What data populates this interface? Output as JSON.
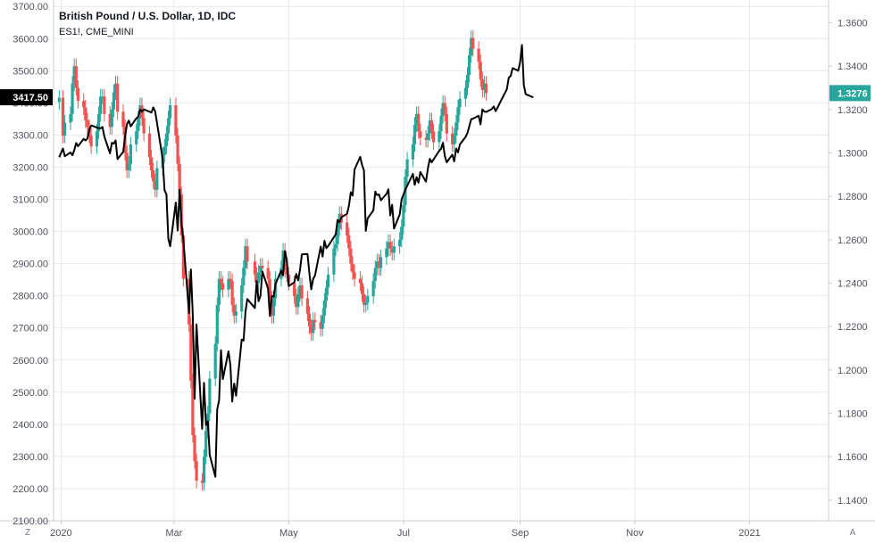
{
  "legend": {
    "main_symbol": "British Pound / U.S. Dollar, 1D, IDC",
    "compare_symbol": "ES1!, CME_MINI"
  },
  "corner_buttons": {
    "left": "Z",
    "right": "A"
  },
  "colors": {
    "up": "#26a69a",
    "down": "#ef5350",
    "compare_line": "#000000",
    "grid": "#e6e9ef",
    "axis_line": "#c8ccd6",
    "last_label_left_bg": "#000000",
    "last_label_right_bg": "#26a69a"
  },
  "chart_data": {
    "type": "candlestick+line",
    "xlabel": "",
    "ylabel": "",
    "x_labels": [
      "2020",
      "Mar",
      "May",
      "Jul",
      "Sep",
      "Nov",
      "2021"
    ],
    "x_label_dates": [
      "2020-01-01",
      "2020-03-01",
      "2020-05-01",
      "2020-07-01",
      "2020-09-01",
      "2020-11-01",
      "2021-01-01"
    ],
    "x_range": [
      "2019-12-28",
      "2021-02-12"
    ],
    "left_axis": {
      "series": "ES1!, CME_MINI",
      "ticks": [
        "3700.00",
        "3600.00",
        "3500.00",
        "3400.00",
        "3300.00",
        "3200.00",
        "3100.00",
        "3000.00",
        "2900.00",
        "2800.00",
        "2700.00",
        "2600.00",
        "2500.00",
        "2400.00",
        "2300.00",
        "2200.00",
        "2100.00"
      ],
      "range": [
        2100,
        3720
      ],
      "last_value": "3417.50"
    },
    "right_axis": {
      "series": "British Pound / U.S. Dollar, 1D, IDC",
      "ticks": [
        "1.3600",
        "1.3400",
        "1.3200",
        "1.3000",
        "1.2800",
        "1.2600",
        "1.2400",
        "1.2200",
        "1.2000",
        "1.1800",
        "1.1600",
        "1.1400"
      ],
      "range": [
        1.1305,
        1.3705
      ],
      "last_value": "1.3276"
    },
    "gbpusd_close_series": [
      [
        "2019-12-31",
        1.3255
      ],
      [
        "2020-01-02",
        1.308
      ],
      [
        "2020-01-03",
        1.314
      ],
      [
        "2020-01-06",
        1.318
      ],
      [
        "2020-01-07",
        1.332
      ],
      [
        "2020-01-08",
        1.34
      ],
      [
        "2020-01-09",
        1.33
      ],
      [
        "2020-01-10",
        1.324
      ],
      [
        "2020-01-13",
        1.321
      ],
      [
        "2020-01-14",
        1.315
      ],
      [
        "2020-01-15",
        1.312
      ],
      [
        "2020-01-16",
        1.308
      ],
      [
        "2020-01-17",
        1.303
      ],
      [
        "2020-01-20",
        1.31
      ],
      [
        "2020-01-21",
        1.318
      ],
      [
        "2020-01-22",
        1.326
      ],
      [
        "2020-01-23",
        1.326
      ],
      [
        "2020-01-24",
        1.318
      ],
      [
        "2020-01-27",
        1.312
      ],
      [
        "2020-01-28",
        1.32
      ],
      [
        "2020-01-29",
        1.328
      ],
      [
        "2020-01-30",
        1.332
      ],
      [
        "2020-01-31",
        1.319
      ],
      [
        "2020-02-03",
        1.312
      ],
      [
        "2020-02-04",
        1.3
      ],
      [
        "2020-02-05",
        1.292
      ],
      [
        "2020-02-06",
        1.295
      ],
      [
        "2020-02-07",
        1.304
      ],
      [
        "2020-02-10",
        1.31
      ],
      [
        "2020-02-11",
        1.316
      ],
      [
        "2020-02-12",
        1.322
      ],
      [
        "2020-02-13",
        1.316
      ],
      [
        "2020-02-14",
        1.309
      ],
      [
        "2020-02-17",
        1.298
      ],
      [
        "2020-02-18",
        1.292
      ],
      [
        "2020-02-19",
        1.287
      ],
      [
        "2020-02-20",
        1.283
      ],
      [
        "2020-02-21",
        1.293
      ],
      [
        "2020-02-24",
        1.299
      ],
      [
        "2020-02-25",
        1.303
      ],
      [
        "2020-02-26",
        1.309
      ],
      [
        "2020-02-27",
        1.316
      ],
      [
        "2020-02-28",
        1.322
      ],
      [
        "2020-03-02",
        1.308
      ],
      [
        "2020-03-03",
        1.295
      ],
      [
        "2020-03-04",
        1.281
      ],
      [
        "2020-03-05",
        1.262
      ],
      [
        "2020-03-06",
        1.242
      ],
      [
        "2020-03-09",
        1.221
      ],
      [
        "2020-03-10",
        1.195
      ],
      [
        "2020-03-11",
        1.17
      ],
      [
        "2020-03-12",
        1.158
      ],
      [
        "2020-03-13",
        1.149
      ],
      [
        "2020-03-16",
        1.148
      ],
      [
        "2020-03-17",
        1.16
      ],
      [
        "2020-03-18",
        1.172
      ],
      [
        "2020-03-19",
        1.18
      ],
      [
        "2020-03-20",
        1.196
      ],
      [
        "2020-03-23",
        1.212
      ],
      [
        "2020-03-24",
        1.23
      ],
      [
        "2020-03-25",
        1.242
      ],
      [
        "2020-03-26",
        1.24
      ],
      [
        "2020-03-27",
        1.237
      ],
      [
        "2020-03-30",
        1.242
      ],
      [
        "2020-03-31",
        1.241
      ],
      [
        "2020-04-01",
        1.23
      ],
      [
        "2020-04-02",
        1.225
      ],
      [
        "2020-04-03",
        1.227
      ],
      [
        "2020-04-06",
        1.239
      ],
      [
        "2020-04-07",
        1.247
      ],
      [
        "2020-04-08",
        1.257
      ],
      [
        "2020-04-09",
        1.25
      ],
      [
        "2020-04-13",
        1.244
      ],
      [
        "2020-04-14",
        1.24
      ],
      [
        "2020-04-15",
        1.245
      ],
      [
        "2020-04-16",
        1.248
      ],
      [
        "2020-04-17",
        1.247
      ],
      [
        "2020-04-20",
        1.242
      ],
      [
        "2020-04-21",
        1.233
      ],
      [
        "2020-04-22",
        1.225
      ],
      [
        "2020-04-23",
        1.233
      ],
      [
        "2020-04-24",
        1.242
      ],
      [
        "2020-04-27",
        1.247
      ],
      [
        "2020-04-28",
        1.255
      ],
      [
        "2020-04-29",
        1.246
      ],
      [
        "2020-04-30",
        1.244
      ],
      [
        "2020-05-01",
        1.24
      ],
      [
        "2020-05-04",
        1.234
      ],
      [
        "2020-05-05",
        1.229
      ],
      [
        "2020-05-06",
        1.235
      ],
      [
        "2020-05-07",
        1.239
      ],
      [
        "2020-05-08",
        1.233
      ],
      [
        "2020-05-11",
        1.226
      ],
      [
        "2020-05-12",
        1.22
      ],
      [
        "2020-05-13",
        1.217
      ],
      [
        "2020-05-14",
        1.223
      ],
      [
        "2020-05-15",
        1.222
      ],
      [
        "2020-05-18",
        1.219
      ],
      [
        "2020-05-19",
        1.225
      ],
      [
        "2020-05-20",
        1.232
      ],
      [
        "2020-05-21",
        1.238
      ],
      [
        "2020-05-22",
        1.244
      ],
      [
        "2020-05-25",
        1.256
      ],
      [
        "2020-05-26",
        1.258
      ],
      [
        "2020-05-27",
        1.265
      ],
      [
        "2020-05-28",
        1.272
      ],
      [
        "2020-05-29",
        1.268
      ],
      [
        "2020-06-01",
        1.262
      ],
      [
        "2020-06-02",
        1.256
      ],
      [
        "2020-06-03",
        1.249
      ],
      [
        "2020-06-04",
        1.245
      ],
      [
        "2020-06-05",
        1.242
      ],
      [
        "2020-06-08",
        1.24
      ],
      [
        "2020-06-09",
        1.235
      ],
      [
        "2020-06-10",
        1.23
      ],
      [
        "2020-06-11",
        1.231
      ],
      [
        "2020-06-12",
        1.234
      ],
      [
        "2020-06-15",
        1.241
      ],
      [
        "2020-06-16",
        1.247
      ],
      [
        "2020-06-17",
        1.25
      ],
      [
        "2020-06-18",
        1.247
      ],
      [
        "2020-06-19",
        1.252
      ],
      [
        "2020-06-22",
        1.256
      ],
      [
        "2020-06-23",
        1.259
      ],
      [
        "2020-06-24",
        1.256
      ],
      [
        "2020-06-25",
        1.254
      ],
      [
        "2020-06-26",
        1.257
      ],
      [
        "2020-06-29",
        1.26
      ],
      [
        "2020-06-30",
        1.266
      ],
      [
        "2020-07-01",
        1.276
      ],
      [
        "2020-07-02",
        1.289
      ],
      [
        "2020-07-03",
        1.297
      ],
      [
        "2020-07-06",
        1.304
      ],
      [
        "2020-07-07",
        1.313
      ],
      [
        "2020-07-08",
        1.318
      ],
      [
        "2020-07-09",
        1.31
      ],
      [
        "2020-07-10",
        1.307
      ],
      [
        "2020-07-13",
        1.306
      ],
      [
        "2020-07-14",
        1.309
      ],
      [
        "2020-07-15",
        1.315
      ],
      [
        "2020-07-16",
        1.31
      ],
      [
        "2020-07-17",
        1.305
      ],
      [
        "2020-07-20",
        1.31
      ],
      [
        "2020-07-21",
        1.317
      ],
      [
        "2020-07-22",
        1.323
      ],
      [
        "2020-07-23",
        1.318
      ],
      [
        "2020-07-24",
        1.309
      ],
      [
        "2020-07-27",
        1.304
      ],
      [
        "2020-07-28",
        1.308
      ],
      [
        "2020-07-29",
        1.314
      ],
      [
        "2020-07-30",
        1.321
      ],
      [
        "2020-07-31",
        1.325
      ],
      [
        "2020-08-03",
        1.33
      ],
      [
        "2020-08-04",
        1.336
      ],
      [
        "2020-08-05",
        1.345
      ],
      [
        "2020-08-06",
        1.353
      ],
      [
        "2020-08-07",
        1.348
      ],
      [
        "2020-08-10",
        1.342
      ],
      [
        "2020-08-11",
        1.334
      ],
      [
        "2020-08-12",
        1.329
      ],
      [
        "2020-08-13",
        1.332
      ],
      [
        "2020-08-14",
        1.3276
      ]
    ],
    "es_line_series": [
      [
        "2019-12-31",
        3231
      ],
      [
        "2020-01-02",
        3258
      ],
      [
        "2020-01-03",
        3234
      ],
      [
        "2020-01-06",
        3246
      ],
      [
        "2020-01-07",
        3237
      ],
      [
        "2020-01-08",
        3253
      ],
      [
        "2020-01-09",
        3275
      ],
      [
        "2020-01-10",
        3265
      ],
      [
        "2020-01-13",
        3288
      ],
      [
        "2020-01-14",
        3283
      ],
      [
        "2020-01-15",
        3289
      ],
      [
        "2020-01-16",
        3316
      ],
      [
        "2020-01-17",
        3330
      ],
      [
        "2020-01-21",
        3321
      ],
      [
        "2020-01-22",
        3321
      ],
      [
        "2020-01-23",
        3325
      ],
      [
        "2020-01-24",
        3295
      ],
      [
        "2020-01-27",
        3243
      ],
      [
        "2020-01-28",
        3276
      ],
      [
        "2020-01-29",
        3273
      ],
      [
        "2020-01-30",
        3283
      ],
      [
        "2020-01-31",
        3225
      ],
      [
        "2020-02-03",
        3248
      ],
      [
        "2020-02-04",
        3297
      ],
      [
        "2020-02-05",
        3334
      ],
      [
        "2020-02-06",
        3345
      ],
      [
        "2020-02-07",
        3327
      ],
      [
        "2020-02-10",
        3352
      ],
      [
        "2020-02-11",
        3357
      ],
      [
        "2020-02-12",
        3379
      ],
      [
        "2020-02-13",
        3373
      ],
      [
        "2020-02-14",
        3380
      ],
      [
        "2020-02-18",
        3370
      ],
      [
        "2020-02-19",
        3386
      ],
      [
        "2020-02-20",
        3373
      ],
      [
        "2020-02-21",
        3337
      ],
      [
        "2020-02-24",
        3225
      ],
      [
        "2020-02-25",
        3128
      ],
      [
        "2020-02-26",
        3116
      ],
      [
        "2020-02-27",
        2978
      ],
      [
        "2020-02-28",
        2954
      ],
      [
        "2020-03-02",
        3090
      ],
      [
        "2020-03-03",
        3003
      ],
      [
        "2020-03-04",
        3130
      ],
      [
        "2020-03-05",
        3023
      ],
      [
        "2020-03-06",
        2972
      ],
      [
        "2020-03-09",
        2746
      ],
      [
        "2020-03-10",
        2882
      ],
      [
        "2020-03-11",
        2741
      ],
      [
        "2020-03-12",
        2480
      ],
      [
        "2020-03-13",
        2711
      ],
      [
        "2020-03-16",
        2386
      ],
      [
        "2020-03-17",
        2529
      ],
      [
        "2020-03-18",
        2398
      ],
      [
        "2020-03-19",
        2409
      ],
      [
        "2020-03-20",
        2305
      ],
      [
        "2020-03-23",
        2237
      ],
      [
        "2020-03-24",
        2447
      ],
      [
        "2020-03-25",
        2475
      ],
      [
        "2020-03-26",
        2631
      ],
      [
        "2020-03-27",
        2541
      ],
      [
        "2020-03-30",
        2627
      ],
      [
        "2020-03-31",
        2585
      ],
      [
        "2020-04-01",
        2471
      ],
      [
        "2020-04-02",
        2527
      ],
      [
        "2020-04-03",
        2489
      ],
      [
        "2020-04-06",
        2664
      ],
      [
        "2020-04-07",
        2660
      ],
      [
        "2020-04-08",
        2750
      ],
      [
        "2020-04-09",
        2790
      ],
      [
        "2020-04-13",
        2762
      ],
      [
        "2020-04-14",
        2846
      ],
      [
        "2020-04-15",
        2783
      ],
      [
        "2020-04-16",
        2800
      ],
      [
        "2020-04-17",
        2875
      ],
      [
        "2020-04-20",
        2823
      ],
      [
        "2020-04-21",
        2737
      ],
      [
        "2020-04-22",
        2799
      ],
      [
        "2020-04-23",
        2797
      ],
      [
        "2020-04-24",
        2837
      ],
      [
        "2020-04-27",
        2878
      ],
      [
        "2020-04-28",
        2863
      ],
      [
        "2020-04-29",
        2939
      ],
      [
        "2020-04-30",
        2912
      ],
      [
        "2020-05-01",
        2830
      ],
      [
        "2020-05-04",
        2842
      ],
      [
        "2020-05-05",
        2868
      ],
      [
        "2020-05-06",
        2848
      ],
      [
        "2020-05-07",
        2881
      ],
      [
        "2020-05-08",
        2929
      ],
      [
        "2020-05-11",
        2930
      ],
      [
        "2020-05-12",
        2870
      ],
      [
        "2020-05-13",
        2820
      ],
      [
        "2020-05-14",
        2852
      ],
      [
        "2020-05-15",
        2863
      ],
      [
        "2020-05-18",
        2953
      ],
      [
        "2020-05-19",
        2922
      ],
      [
        "2020-05-20",
        2971
      ],
      [
        "2020-05-21",
        2948
      ],
      [
        "2020-05-22",
        2955
      ],
      [
        "2020-05-26",
        2991
      ],
      [
        "2020-05-27",
        3036
      ],
      [
        "2020-05-28",
        3029
      ],
      [
        "2020-05-29",
        3044
      ],
      [
        "2020-06-01",
        3055
      ],
      [
        "2020-06-02",
        3080
      ],
      [
        "2020-06-03",
        3122
      ],
      [
        "2020-06-04",
        3112
      ],
      [
        "2020-06-05",
        3193
      ],
      [
        "2020-06-08",
        3232
      ],
      [
        "2020-06-09",
        3207
      ],
      [
        "2020-06-10",
        3190
      ],
      [
        "2020-06-11",
        3002
      ],
      [
        "2020-06-12",
        3041
      ],
      [
        "2020-06-15",
        3066
      ],
      [
        "2020-06-16",
        3124
      ],
      [
        "2020-06-17",
        3113
      ],
      [
        "2020-06-18",
        3115
      ],
      [
        "2020-06-19",
        3097
      ],
      [
        "2020-06-22",
        3117
      ],
      [
        "2020-06-23",
        3131
      ],
      [
        "2020-06-24",
        3050
      ],
      [
        "2020-06-25",
        3083
      ],
      [
        "2020-06-26",
        3009
      ],
      [
        "2020-06-29",
        3053
      ],
      [
        "2020-06-30",
        3100
      ],
      [
        "2020-07-01",
        3115
      ],
      [
        "2020-07-02",
        3130
      ],
      [
        "2020-07-06",
        3179
      ],
      [
        "2020-07-07",
        3145
      ],
      [
        "2020-07-08",
        3169
      ],
      [
        "2020-07-09",
        3152
      ],
      [
        "2020-07-10",
        3185
      ],
      [
        "2020-07-13",
        3155
      ],
      [
        "2020-07-14",
        3197
      ],
      [
        "2020-07-15",
        3226
      ],
      [
        "2020-07-16",
        3215
      ],
      [
        "2020-07-17",
        3224
      ],
      [
        "2020-07-20",
        3251
      ],
      [
        "2020-07-21",
        3257
      ],
      [
        "2020-07-22",
        3276
      ],
      [
        "2020-07-23",
        3235
      ],
      [
        "2020-07-24",
        3215
      ],
      [
        "2020-07-27",
        3239
      ],
      [
        "2020-07-28",
        3218
      ],
      [
        "2020-07-29",
        3258
      ],
      [
        "2020-07-30",
        3246
      ],
      [
        "2020-07-31",
        3271
      ],
      [
        "2020-08-03",
        3294
      ],
      [
        "2020-08-04",
        3306
      ],
      [
        "2020-08-05",
        3327
      ],
      [
        "2020-08-06",
        3349
      ],
      [
        "2020-08-07",
        3351
      ],
      [
        "2020-08-10",
        3360
      ],
      [
        "2020-08-11",
        3333
      ],
      [
        "2020-08-12",
        3380
      ],
      [
        "2020-08-13",
        3373
      ],
      [
        "2020-08-14",
        3372
      ],
      [
        "2020-08-17",
        3381
      ],
      [
        "2020-08-18",
        3389
      ],
      [
        "2020-08-19",
        3374
      ],
      [
        "2020-08-20",
        3385
      ],
      [
        "2020-08-21",
        3397
      ],
      [
        "2020-08-24",
        3431
      ],
      [
        "2020-08-25",
        3443
      ],
      [
        "2020-08-26",
        3478
      ],
      [
        "2020-08-27",
        3484
      ],
      [
        "2020-08-28",
        3508
      ],
      [
        "2020-08-31",
        3500
      ],
      [
        "2020-09-01",
        3526
      ],
      [
        "2020-09-02",
        3580
      ],
      [
        "2020-09-03",
        3455
      ],
      [
        "2020-09-04",
        3427
      ],
      [
        "2020-09-08",
        3417
      ]
    ]
  }
}
